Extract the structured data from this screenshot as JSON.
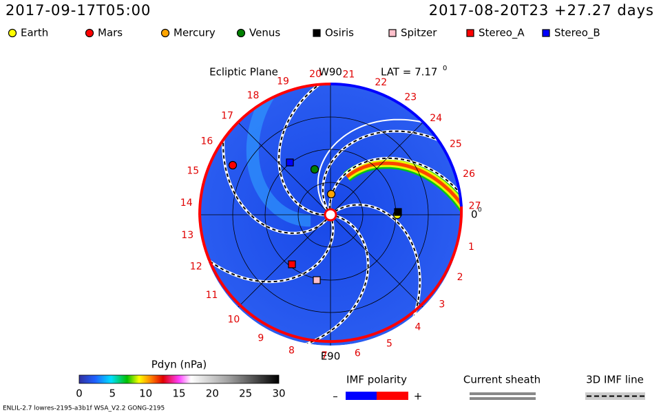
{
  "header": {
    "left_time": "2017-09-17T05:00",
    "right_time": "2017-08-20T23 +27.27 days"
  },
  "legend": [
    {
      "label": "Earth",
      "color": "#ffff00",
      "shape": "circle"
    },
    {
      "label": "Mars",
      "color": "#ff0000",
      "shape": "circle"
    },
    {
      "label": "Mercury",
      "color": "#ffa500",
      "shape": "circle"
    },
    {
      "label": "Venus",
      "color": "#008000",
      "shape": "circle"
    },
    {
      "label": "Osiris",
      "color": "#000000",
      "shape": "square"
    },
    {
      "label": "Spitzer",
      "color": "#ffc0cb",
      "shape": "square"
    },
    {
      "label": "Stereo_A",
      "color": "#ff0000",
      "shape": "square"
    },
    {
      "label": "Stereo_B",
      "color": "#0000ff",
      "shape": "square"
    }
  ],
  "plot": {
    "title": "Ecliptic Plane",
    "top_label": "W90",
    "bottom_label": "E90",
    "lat_label": "LAT = 7.17",
    "lat_sup": "0",
    "zero_label": "0",
    "zero_sup": "0",
    "sector_numbers": [
      "1",
      "2",
      "3",
      "4",
      "5",
      "6",
      "7",
      "8",
      "9",
      "10",
      "11",
      "12",
      "13",
      "14",
      "15",
      "16",
      "17",
      "18",
      "19",
      "20",
      "21",
      "22",
      "23",
      "24",
      "25",
      "26",
      "27"
    ]
  },
  "colorbar": {
    "title": "Pdyn (nPa)",
    "ticks": [
      "0",
      "5",
      "10",
      "15",
      "20",
      "25",
      "30"
    ]
  },
  "imf_polarity": {
    "title": "IMF polarity",
    "minus": "–",
    "plus": "+"
  },
  "current_sheath": {
    "title": "Current sheath"
  },
  "imf_line": {
    "title": "3D IMF line"
  },
  "footer": "ENLIL-2.7 lowres-2195-a3b1f WSA_V2.2 GONG-2195"
}
